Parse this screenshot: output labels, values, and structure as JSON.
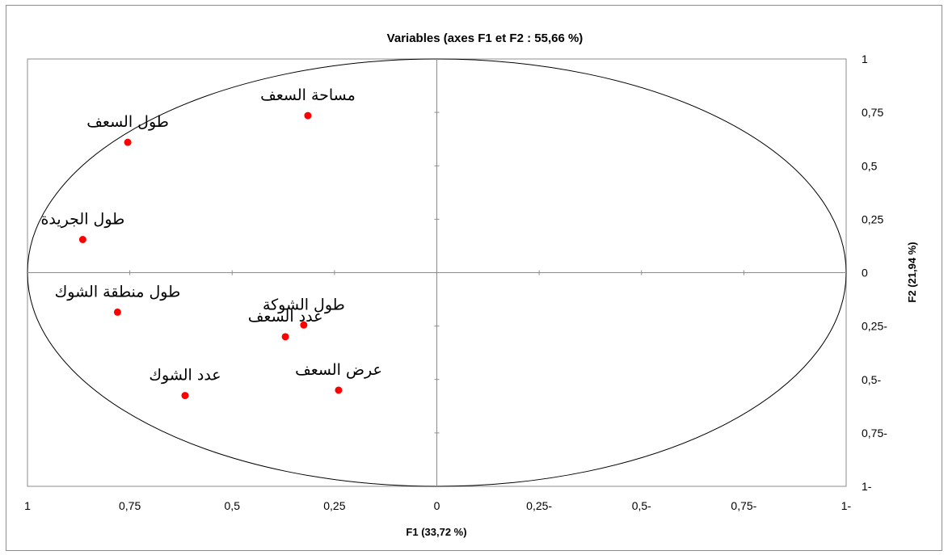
{
  "chart_data": {
    "type": "scatter",
    "title": "Variables (axes F1 et F2 : 55,66 %)",
    "xlabel": "F1 (33,72 %)",
    "ylabel": "F2 (21,94 %)",
    "xlim": [
      -1,
      1
    ],
    "ylim": [
      -1,
      1
    ],
    "x_reversed": true,
    "x_tick_values": [
      1,
      0.75,
      0.5,
      0.25,
      0,
      -0.25,
      -0.5,
      -0.75,
      -1
    ],
    "x_tick_labels": [
      "1",
      "0,75",
      "0,5",
      "0,25",
      "0",
      "0,25-",
      "0,5-",
      "0,75-",
      "1-"
    ],
    "y_tick_values": [
      1,
      0.75,
      0.5,
      0.25,
      0,
      -0.25,
      -0.5,
      -0.75,
      -1
    ],
    "y_tick_labels": [
      "1",
      "0,75",
      "0,5",
      "0,25",
      "0",
      "0,25-",
      "0,5-",
      "0,75-",
      "1-"
    ],
    "y_axis_position": "right",
    "correlation_circle": true,
    "grid": false,
    "marker_color": "#ff0000",
    "points": [
      {
        "label": "مساحة السعف",
        "x": 0.315,
        "y": 0.735
      },
      {
        "label": "طول السعف",
        "x": 0.755,
        "y": 0.61
      },
      {
        "label": "طول الجريدة",
        "x": 0.865,
        "y": 0.155
      },
      {
        "label": "طول منطقة الشوك",
        "x": 0.78,
        "y": -0.185
      },
      {
        "label": "طول الشوكة",
        "x": 0.325,
        "y": -0.245
      },
      {
        "label": "عدد السعف",
        "x": 0.37,
        "y": -0.3
      },
      {
        "label": "عرض السعف",
        "x": 0.24,
        "y": -0.55
      },
      {
        "label": "عدد الشوك",
        "x": 0.615,
        "y": -0.575
      }
    ]
  }
}
